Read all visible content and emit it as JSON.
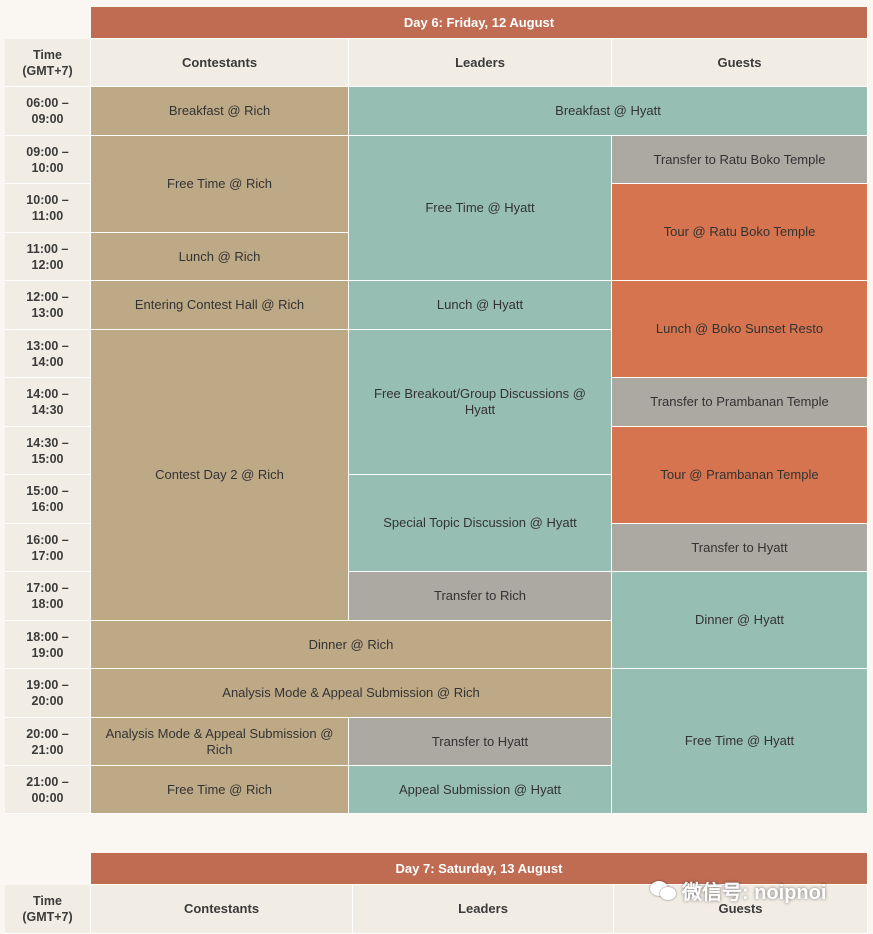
{
  "day6": {
    "title": "Day 6: Friday, 12 August",
    "headers": {
      "time": "Time\n(GMT+7)",
      "contestants": "Contestants",
      "leaders": "Leaders",
      "guests": "Guests"
    },
    "times": [
      "06:00 –\n09:00",
      "09:00 –\n10:00",
      "10:00 –\n11:00",
      "11:00 –\n12:00",
      "12:00 –\n13:00",
      "13:00 –\n14:00",
      "14:00 –\n14:30",
      "14:30 –\n15:00",
      "15:00 –\n16:00",
      "16:00 –\n17:00",
      "17:00 –\n18:00",
      "18:00 –\n19:00",
      "19:00 –\n20:00",
      "20:00 –\n21:00",
      "21:00 –\n00:00"
    ],
    "contestants": {
      "breakfast": "Breakfast @ Rich",
      "free_time": "Free Time @ Rich",
      "lunch": "Lunch @ Rich",
      "entering_hall": "Entering Contest Hall @ Rich",
      "contest": "Contest Day 2 @ Rich",
      "analysis": "Analysis Mode & Appeal Submission @ Rich",
      "free_time_late": "Free Time @ Rich"
    },
    "shared": {
      "breakfast_hyatt": "Breakfast @ Hyatt",
      "dinner_rich": "Dinner @ Rich",
      "analysis_rich": "Analysis Mode & Appeal Submission @ Rich"
    },
    "leaders": {
      "free_time": "Free Time @ Hyatt",
      "lunch": "Lunch @ Hyatt",
      "breakout": "Free Breakout/Group Discussions @ Hyatt",
      "special_topic": "Special Topic Discussion @ Hyatt",
      "transfer_rich": "Transfer to Rich",
      "transfer_hyatt": "Transfer to Hyatt",
      "appeal": "Appeal Submission @ Hyatt"
    },
    "guests": {
      "transfer_ratu": "Transfer to Ratu Boko Temple",
      "tour_ratu": "Tour @ Ratu Boko Temple",
      "lunch_boko": "Lunch @ Boko Sunset Resto",
      "transfer_prambanan": "Transfer to Prambanan Temple",
      "tour_prambanan": "Tour @ Prambanan Temple",
      "transfer_hyatt": "Transfer to Hyatt",
      "dinner": "Dinner @ Hyatt",
      "free_time": "Free Time @ Hyatt"
    }
  },
  "day7": {
    "title": "Day 7: Saturday, 13 August",
    "headers": {
      "time": "Time\n(GMT+7)",
      "contestants": "Contestants",
      "leaders": "Leaders",
      "guests": "Guests"
    }
  },
  "watermark": {
    "text": "微信号: noipnoi",
    "icon": "wechat-icon"
  },
  "colors": {
    "day_header": "#c06c53",
    "contestants": "#bea987",
    "hyatt": "#97beb3",
    "transfer": "#aca8a2",
    "tour": "#d5744f",
    "header_bg": "#f1ece4"
  }
}
